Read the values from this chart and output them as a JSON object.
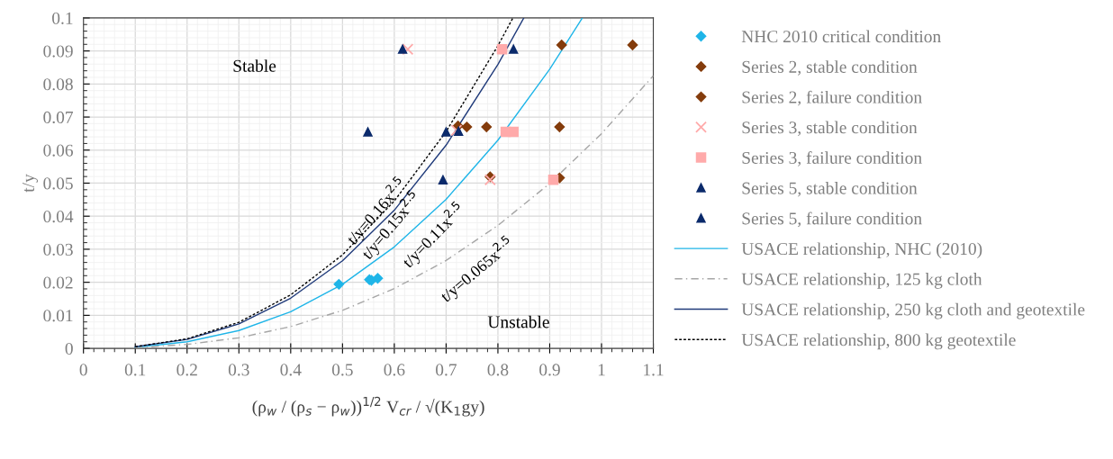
{
  "chart_data": {
    "type": "scatter",
    "xlabel": "(ρ$_{w}$ / (ρ$_{s}$ − ρ$_{w}$))$^{1/2}$ V$_{cr}$ / √(K$_{1}$gy)",
    "ylabel": "t/y",
    "xlim": [
      0,
      1.1
    ],
    "xticks": [
      0,
      0.1,
      0.2,
      0.3,
      0.4,
      0.5,
      0.6,
      0.7,
      0.8,
      0.9,
      1,
      1.1
    ],
    "ylim": [
      0,
      0.1
    ],
    "yticks": [
      0,
      0.01,
      0.02,
      0.03,
      0.04,
      0.05,
      0.06,
      0.07,
      0.08,
      0.09,
      0.1
    ],
    "grid": true,
    "legend": "right",
    "annotations": [
      "Stable",
      "Unstable",
      "t/y=0.16x$^{2.5}$",
      "t/y=0.15x$^{2.5}$",
      "t/y=0.11x$^{2.5}$",
      "t/y=0.065x$^{2.5}$"
    ],
    "series": [
      {
        "name": "NHC 2010 critical condition",
        "marker": "diamond",
        "color": "#1fb5e8",
        "x": [
          0.493,
          0.552,
          0.556,
          0.568
        ],
        "values": [
          0.0194,
          0.0208,
          0.0206,
          0.0212
        ]
      },
      {
        "name": "Series 2, stable condition",
        "marker": "diamond",
        "color": "#843c0c",
        "x": [
          0.723,
          0.74,
          0.923,
          0.785
        ],
        "values": [
          0.0673,
          0.067,
          0.0918,
          0.0519
        ]
      },
      {
        "name": "Series 2, failure condition",
        "marker": "diamond",
        "color": "#843c0c",
        "x": [
          0.778,
          0.919,
          1.06,
          0.919
        ],
        "values": [
          0.067,
          0.067,
          0.0918,
          0.0516
        ]
      },
      {
        "name": "Series 3, stable condition",
        "marker": "cross",
        "color": "#ffaaaa",
        "x": [
          0.626,
          0.72,
          0.785
        ],
        "values": [
          0.0905,
          0.066,
          0.051
        ]
      },
      {
        "name": "Series 3, failure condition",
        "marker": "square",
        "color": "#ffaaaa",
        "x": [
          0.808,
          0.815,
          0.83,
          0.907
        ],
        "values": [
          0.0905,
          0.0655,
          0.0655,
          0.051
        ]
      },
      {
        "name": "Series 5, stable condition",
        "marker": "triangle",
        "color": "#0b2a6b",
        "x": [
          0.616,
          0.549,
          0.7,
          0.694
        ],
        "values": [
          0.0905,
          0.0655,
          0.0655,
          0.051
        ]
      },
      {
        "name": "Series 5, failure condition",
        "marker": "triangle",
        "color": "#0b2a6b",
        "x": [
          0.83,
          0.724
        ],
        "values": [
          0.0905,
          0.0657
        ]
      },
      {
        "name": "USACE relationship, NHC (2010)",
        "type": "line",
        "line_style": "solid",
        "color": "#1fb5e8",
        "x": [
          0.1,
          0.2,
          0.3,
          0.4,
          0.5,
          0.6,
          0.7,
          0.8,
          0.9,
          0.963
        ],
        "values": [
          0.0003,
          0.002,
          0.0054,
          0.0111,
          0.0194,
          0.0307,
          0.0451,
          0.063,
          0.0845,
          0.1
        ]
      },
      {
        "name": "USACE relationship, 125 kg cloth",
        "type": "line",
        "line_style": "dashdot",
        "color": "#a6a6a6",
        "x": [
          0.1,
          0.2,
          0.3,
          0.4,
          0.5,
          0.6,
          0.7,
          0.8,
          0.9,
          1,
          1.1
        ],
        "values": [
          0.0002,
          0.0012,
          0.0032,
          0.0066,
          0.0115,
          0.0181,
          0.0266,
          0.0372,
          0.0499,
          0.065,
          0.0825
        ]
      },
      {
        "name": "USACE relationship, 250 kg cloth and geotextile",
        "type": "line",
        "line_style": "solid",
        "color": "#1f3a7a",
        "x": [
          0.1,
          0.2,
          0.3,
          0.4,
          0.5,
          0.6,
          0.7,
          0.8,
          0.85
        ],
        "values": [
          0.0005,
          0.0027,
          0.0074,
          0.0152,
          0.0265,
          0.0418,
          0.0615,
          0.0859,
          0.1
        ]
      },
      {
        "name": "USACE relationship, 800 kg geotextile",
        "type": "line",
        "line_style": "dotted",
        "color": "#000000",
        "x": [
          0.1,
          0.2,
          0.3,
          0.4,
          0.5,
          0.6,
          0.7,
          0.8,
          0.829
        ],
        "values": [
          0.0005,
          0.0029,
          0.0079,
          0.0162,
          0.0283,
          0.0446,
          0.0656,
          0.0916,
          0.1
        ]
      }
    ]
  }
}
